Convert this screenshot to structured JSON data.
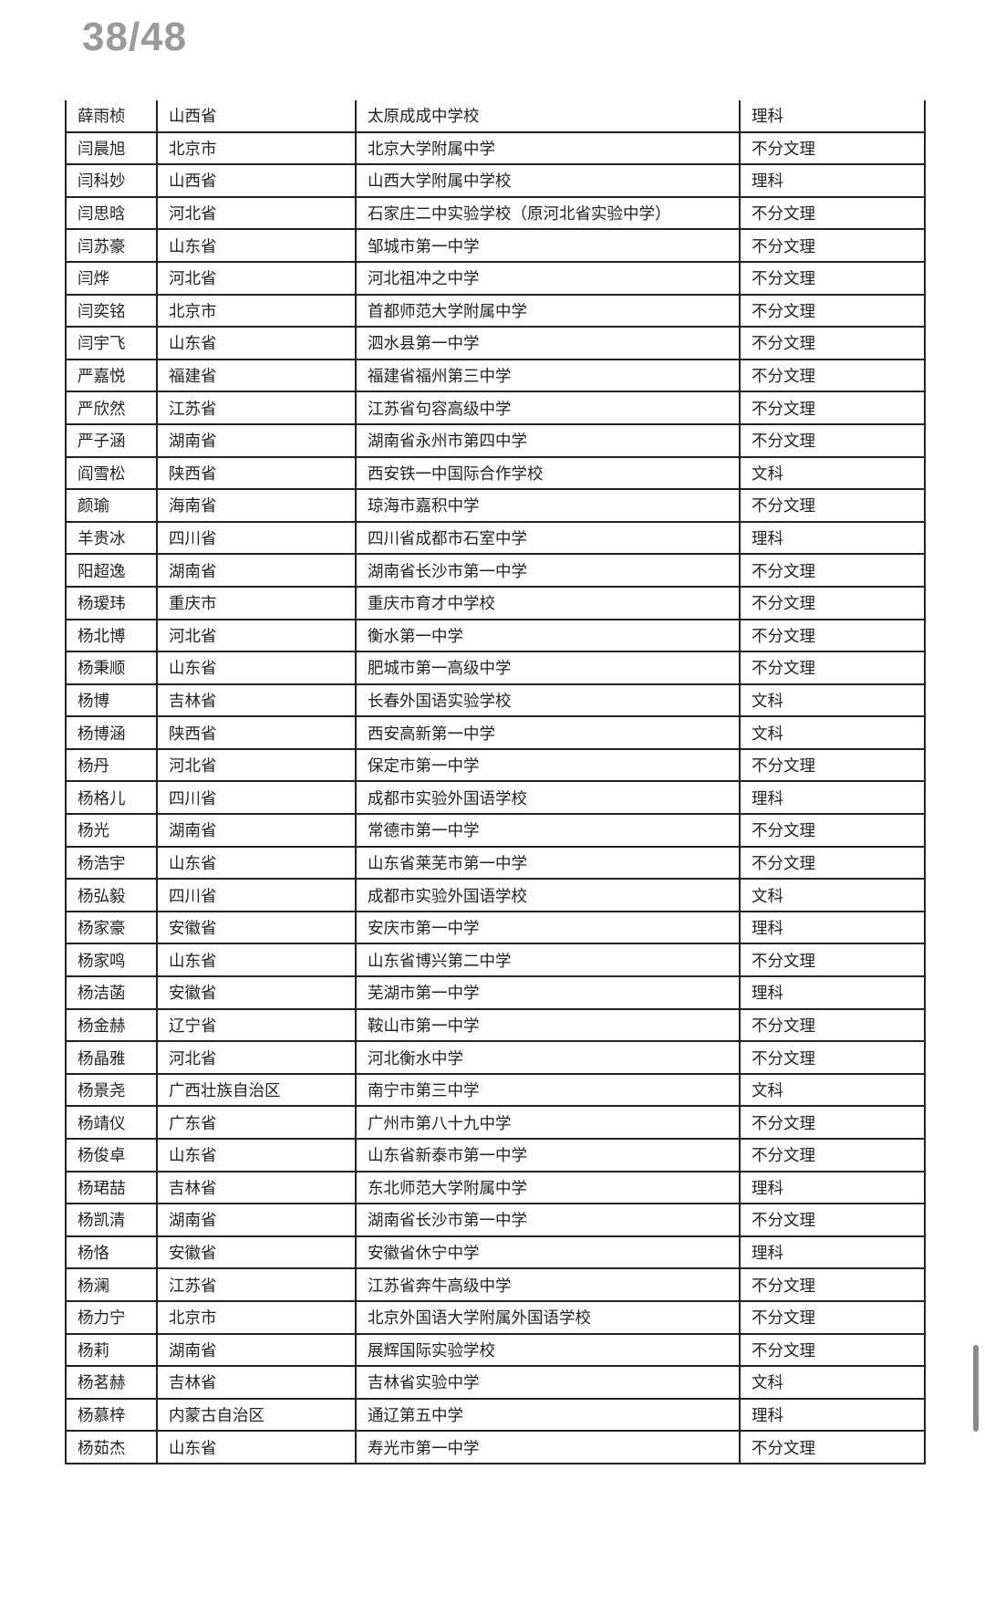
{
  "page_indicator": "38/48",
  "rows": [
    [
      "薛雨桢",
      "山西省",
      "太原成成中学校",
      "理科"
    ],
    [
      "闫晨旭",
      "北京市",
      "北京大学附属中学",
      "不分文理"
    ],
    [
      "闫科妙",
      "山西省",
      "山西大学附属中学校",
      "理科"
    ],
    [
      "闫思晗",
      "河北省",
      "石家庄二中实验学校（原河北省实验中学）",
      "不分文理"
    ],
    [
      "闫苏豪",
      "山东省",
      "邹城市第一中学",
      "不分文理"
    ],
    [
      "闫烨",
      "河北省",
      "河北祖冲之中学",
      "不分文理"
    ],
    [
      "闫奕铭",
      "北京市",
      "首都师范大学附属中学",
      "不分文理"
    ],
    [
      "闫宇飞",
      "山东省",
      "泗水县第一中学",
      "不分文理"
    ],
    [
      "严嘉悦",
      "福建省",
      "福建省福州第三中学",
      "不分文理"
    ],
    [
      "严欣然",
      "江苏省",
      "江苏省句容高级中学",
      "不分文理"
    ],
    [
      "严子涵",
      "湖南省",
      "湖南省永州市第四中学",
      "不分文理"
    ],
    [
      "阎雪松",
      "陕西省",
      "西安铁一中国际合作学校",
      "文科"
    ],
    [
      "颜瑜",
      "海南省",
      "琼海市嘉积中学",
      "不分文理"
    ],
    [
      "羊贵冰",
      "四川省",
      "四川省成都市石室中学",
      "理科"
    ],
    [
      "阳超逸",
      "湖南省",
      "湖南省长沙市第一中学",
      "不分文理"
    ],
    [
      "杨瑷玮",
      "重庆市",
      "重庆市育才中学校",
      "不分文理"
    ],
    [
      "杨北博",
      "河北省",
      "衡水第一中学",
      "不分文理"
    ],
    [
      "杨秉顺",
      "山东省",
      "肥城市第一高级中学",
      "不分文理"
    ],
    [
      "杨博",
      "吉林省",
      "长春外国语实验学校",
      "文科"
    ],
    [
      "杨博涵",
      "陕西省",
      "西安高新第一中学",
      "文科"
    ],
    [
      "杨丹",
      "河北省",
      "保定市第一中学",
      "不分文理"
    ],
    [
      "杨格儿",
      "四川省",
      "成都市实验外国语学校",
      "理科"
    ],
    [
      "杨光",
      "湖南省",
      "常德市第一中学",
      "不分文理"
    ],
    [
      "杨浩宇",
      "山东省",
      "山东省莱芜市第一中学",
      "不分文理"
    ],
    [
      "杨弘毅",
      "四川省",
      "成都市实验外国语学校",
      "文科"
    ],
    [
      "杨家豪",
      "安徽省",
      "安庆市第一中学",
      "理科"
    ],
    [
      "杨家鸣",
      "山东省",
      "山东省博兴第二中学",
      "不分文理"
    ],
    [
      "杨洁菡",
      "安徽省",
      "芜湖市第一中学",
      "理科"
    ],
    [
      "杨金赫",
      "辽宁省",
      "鞍山市第一中学",
      "不分文理"
    ],
    [
      "杨晶雅",
      "河北省",
      "河北衡水中学",
      "不分文理"
    ],
    [
      "杨景尧",
      "广西壮族自治区",
      "南宁市第三中学",
      "文科"
    ],
    [
      "杨靖仪",
      "广东省",
      "广州市第八十九中学",
      "不分文理"
    ],
    [
      "杨俊卓",
      "山东省",
      "山东省新泰市第一中学",
      "不分文理"
    ],
    [
      "杨珺喆",
      "吉林省",
      "东北师范大学附属中学",
      "理科"
    ],
    [
      "杨凯清",
      "湖南省",
      "湖南省长沙市第一中学",
      "不分文理"
    ],
    [
      "杨恪",
      "安徽省",
      "安徽省休宁中学",
      "理科"
    ],
    [
      "杨澜",
      "江苏省",
      "江苏省奔牛高级中学",
      "不分文理"
    ],
    [
      "杨力宁",
      "北京市",
      "北京外国语大学附属外国语学校",
      "不分文理"
    ],
    [
      "杨莉",
      "湖南省",
      "展辉国际实验学校",
      "不分文理"
    ],
    [
      "杨茗赫",
      "吉林省",
      "吉林省实验中学",
      "文科"
    ],
    [
      "杨慕梓",
      "内蒙古自治区",
      "通辽第五中学",
      "理科"
    ],
    [
      "杨茹杰",
      "山东省",
      "寿光市第一中学",
      "不分文理"
    ]
  ]
}
